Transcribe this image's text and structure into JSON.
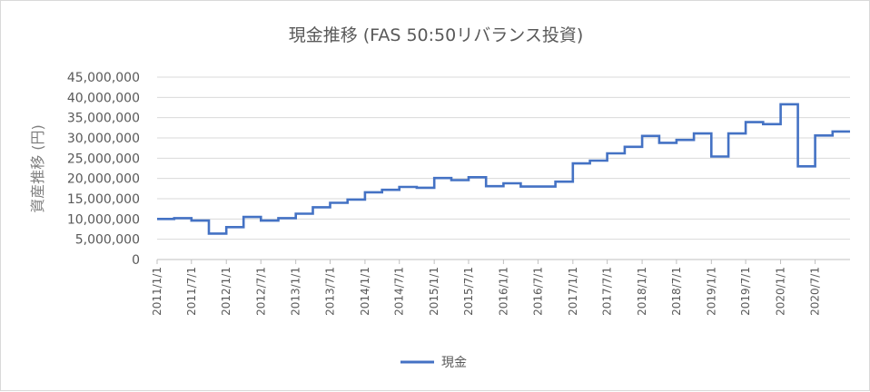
{
  "chart_data": {
    "type": "line",
    "title": "現金推移 (FAS 50:50リバランス投資)",
    "xlabel": "",
    "ylabel": "資産推移 (円)",
    "ylim": [
      0,
      45000000
    ],
    "y_ticks": [
      0,
      5000000,
      10000000,
      15000000,
      20000000,
      25000000,
      30000000,
      35000000,
      40000000,
      45000000
    ],
    "y_tick_labels": [
      "0",
      "5,000,000",
      "10,000,000",
      "15,000,000",
      "20,000,000",
      "25,000,000",
      "30,000,000",
      "35,000,000",
      "40,000,000",
      "45,000,000"
    ],
    "x_tick_labels": [
      "2011/1/1",
      "2011/7/1",
      "2012/1/1",
      "2012/7/1",
      "2013/1/1",
      "2013/7/1",
      "2014/1/1",
      "2014/7/1",
      "2015/1/1",
      "2015/7/1",
      "2016/1/1",
      "2016/7/1",
      "2017/1/1",
      "2017/7/1",
      "2018/1/1",
      "2018/7/1",
      "2019/1/1",
      "2019/7/1",
      "2020/1/1",
      "2020/7/1"
    ],
    "grid": true,
    "legend": "bottom",
    "series": [
      {
        "name": "現金",
        "color": "#4472c4",
        "x": [
          "2011/1/1",
          "2011/4/1",
          "2011/7/1",
          "2011/10/1",
          "2012/1/1",
          "2012/4/1",
          "2012/7/1",
          "2012/10/1",
          "2013/1/1",
          "2013/4/1",
          "2013/7/1",
          "2013/10/1",
          "2014/1/1",
          "2014/4/1",
          "2014/7/1",
          "2014/10/1",
          "2015/1/1",
          "2015/4/1",
          "2015/7/1",
          "2015/10/1",
          "2016/1/1",
          "2016/4/1",
          "2016/7/1",
          "2016/10/1",
          "2017/1/1",
          "2017/4/1",
          "2017/7/1",
          "2017/10/1",
          "2018/1/1",
          "2018/4/1",
          "2018/7/1",
          "2018/10/1",
          "2019/1/1",
          "2019/4/1",
          "2019/7/1",
          "2019/10/1",
          "2020/1/1",
          "2020/4/1",
          "2020/7/1",
          "2020/10/1"
        ],
        "values": [
          10000000,
          10200000,
          9600000,
          6400000,
          8000000,
          10500000,
          9600000,
          10200000,
          11300000,
          12900000,
          14000000,
          14800000,
          16600000,
          17200000,
          17900000,
          17700000,
          20100000,
          19600000,
          20300000,
          18100000,
          18800000,
          18000000,
          18000000,
          19200000,
          23700000,
          24400000,
          26200000,
          27800000,
          30500000,
          28800000,
          29500000,
          31100000,
          25400000,
          31100000,
          33900000,
          33400000,
          38300000,
          23000000,
          30600000,
          31600000
        ]
      }
    ]
  }
}
